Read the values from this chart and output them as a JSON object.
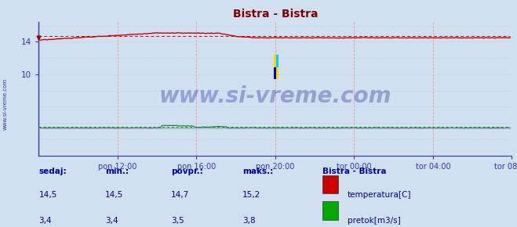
{
  "title": "Bistra - Bistra",
  "title_color": "#800000",
  "bg_color": "#d0e0f0",
  "border_color": "#3333aa",
  "grid_color_h": "#c0c0d8",
  "grid_color_v": "#e8a0a0",
  "ylabel_color": "#3333aa",
  "xticklabels": [
    "pon 12:00",
    "pon 16:00",
    "pon 20:00",
    "tor 00:00",
    "tor 04:00",
    "tor 08:00"
  ],
  "ylim": [
    0,
    16.5
  ],
  "xlim": [
    0,
    288
  ],
  "temp_color": "#cc0000",
  "flow_color": "#008800",
  "height_color": "#8888cc",
  "watermark": "www.si-vreme.com",
  "watermark_color": "#000066",
  "legend_title": "Bistra - Bistra",
  "legend_items": [
    {
      "label": "temperatura[C]",
      "color": "#cc0000"
    },
    {
      "label": "pretok[m3/s]",
      "color": "#00aa00"
    }
  ],
  "table_headers": [
    "sedaj:",
    "min.:",
    "povpr.:",
    "maks.:"
  ],
  "table_data": [
    [
      "14,5",
      "14,5",
      "14,7",
      "15,2"
    ],
    [
      "3,4",
      "3,4",
      "3,5",
      "3,8"
    ]
  ],
  "table_color": "#000099",
  "sidebar_text": "www.si-vreme.com",
  "sidebar_color": "#3333aa",
  "logo_yellow": "#FFD700",
  "logo_cyan": "#00CFFF",
  "logo_blue": "#0000CC"
}
